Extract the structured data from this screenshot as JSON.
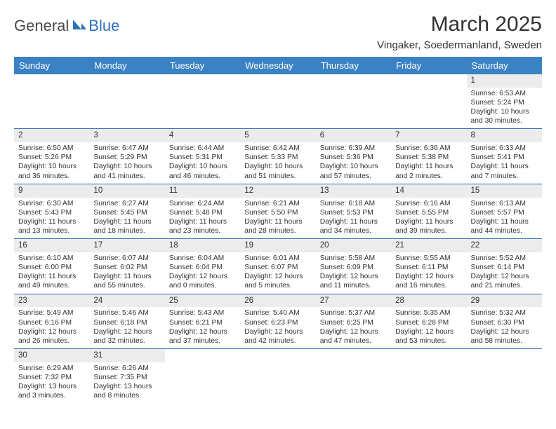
{
  "logo": {
    "text1": "General",
    "text2": "Blue"
  },
  "header": {
    "title": "March 2025",
    "location": "Vingaker, Soedermanland, Sweden"
  },
  "colors": {
    "header_bg": "#3a82c4",
    "header_text": "#ffffff",
    "border": "#2f70b8",
    "daynum_bg": "#ececec",
    "page_bg": "#ffffff",
    "text": "#333333",
    "logo_gray": "#4a4a4a",
    "logo_blue": "#2f70b8"
  },
  "weekdays": [
    "Sunday",
    "Monday",
    "Tuesday",
    "Wednesday",
    "Thursday",
    "Friday",
    "Saturday"
  ],
  "days": [
    {
      "n": "1",
      "sr": "6:53 AM",
      "ss": "5:24 PM",
      "dl": "10 hours and 30 minutes."
    },
    {
      "n": "2",
      "sr": "6:50 AM",
      "ss": "5:26 PM",
      "dl": "10 hours and 36 minutes."
    },
    {
      "n": "3",
      "sr": "6:47 AM",
      "ss": "5:29 PM",
      "dl": "10 hours and 41 minutes."
    },
    {
      "n": "4",
      "sr": "6:44 AM",
      "ss": "5:31 PM",
      "dl": "10 hours and 46 minutes."
    },
    {
      "n": "5",
      "sr": "6:42 AM",
      "ss": "5:33 PM",
      "dl": "10 hours and 51 minutes."
    },
    {
      "n": "6",
      "sr": "6:39 AM",
      "ss": "5:36 PM",
      "dl": "10 hours and 57 minutes."
    },
    {
      "n": "7",
      "sr": "6:36 AM",
      "ss": "5:38 PM",
      "dl": "11 hours and 2 minutes."
    },
    {
      "n": "8",
      "sr": "6:33 AM",
      "ss": "5:41 PM",
      "dl": "11 hours and 7 minutes."
    },
    {
      "n": "9",
      "sr": "6:30 AM",
      "ss": "5:43 PM",
      "dl": "11 hours and 13 minutes."
    },
    {
      "n": "10",
      "sr": "6:27 AM",
      "ss": "5:45 PM",
      "dl": "11 hours and 18 minutes."
    },
    {
      "n": "11",
      "sr": "6:24 AM",
      "ss": "5:48 PM",
      "dl": "11 hours and 23 minutes."
    },
    {
      "n": "12",
      "sr": "6:21 AM",
      "ss": "5:50 PM",
      "dl": "11 hours and 28 minutes."
    },
    {
      "n": "13",
      "sr": "6:18 AM",
      "ss": "5:53 PM",
      "dl": "11 hours and 34 minutes."
    },
    {
      "n": "14",
      "sr": "6:16 AM",
      "ss": "5:55 PM",
      "dl": "11 hours and 39 minutes."
    },
    {
      "n": "15",
      "sr": "6:13 AM",
      "ss": "5:57 PM",
      "dl": "11 hours and 44 minutes."
    },
    {
      "n": "16",
      "sr": "6:10 AM",
      "ss": "6:00 PM",
      "dl": "11 hours and 49 minutes."
    },
    {
      "n": "17",
      "sr": "6:07 AM",
      "ss": "6:02 PM",
      "dl": "11 hours and 55 minutes."
    },
    {
      "n": "18",
      "sr": "6:04 AM",
      "ss": "6:04 PM",
      "dl": "12 hours and 0 minutes."
    },
    {
      "n": "19",
      "sr": "6:01 AM",
      "ss": "6:07 PM",
      "dl": "12 hours and 5 minutes."
    },
    {
      "n": "20",
      "sr": "5:58 AM",
      "ss": "6:09 PM",
      "dl": "12 hours and 11 minutes."
    },
    {
      "n": "21",
      "sr": "5:55 AM",
      "ss": "6:11 PM",
      "dl": "12 hours and 16 minutes."
    },
    {
      "n": "22",
      "sr": "5:52 AM",
      "ss": "6:14 PM",
      "dl": "12 hours and 21 minutes."
    },
    {
      "n": "23",
      "sr": "5:49 AM",
      "ss": "6:16 PM",
      "dl": "12 hours and 26 minutes."
    },
    {
      "n": "24",
      "sr": "5:46 AM",
      "ss": "6:18 PM",
      "dl": "12 hours and 32 minutes."
    },
    {
      "n": "25",
      "sr": "5:43 AM",
      "ss": "6:21 PM",
      "dl": "12 hours and 37 minutes."
    },
    {
      "n": "26",
      "sr": "5:40 AM",
      "ss": "6:23 PM",
      "dl": "12 hours and 42 minutes."
    },
    {
      "n": "27",
      "sr": "5:37 AM",
      "ss": "6:25 PM",
      "dl": "12 hours and 47 minutes."
    },
    {
      "n": "28",
      "sr": "5:35 AM",
      "ss": "6:28 PM",
      "dl": "12 hours and 53 minutes."
    },
    {
      "n": "29",
      "sr": "5:32 AM",
      "ss": "6:30 PM",
      "dl": "12 hours and 58 minutes."
    },
    {
      "n": "30",
      "sr": "6:29 AM",
      "ss": "7:32 PM",
      "dl": "13 hours and 3 minutes."
    },
    {
      "n": "31",
      "sr": "6:26 AM",
      "ss": "7:35 PM",
      "dl": "13 hours and 8 minutes."
    }
  ],
  "labels": {
    "sunrise": "Sunrise:",
    "sunset": "Sunset:",
    "daylight": "Daylight:"
  },
  "layout": {
    "first_weekday_index": 6,
    "rows": 6,
    "cols": 7
  }
}
